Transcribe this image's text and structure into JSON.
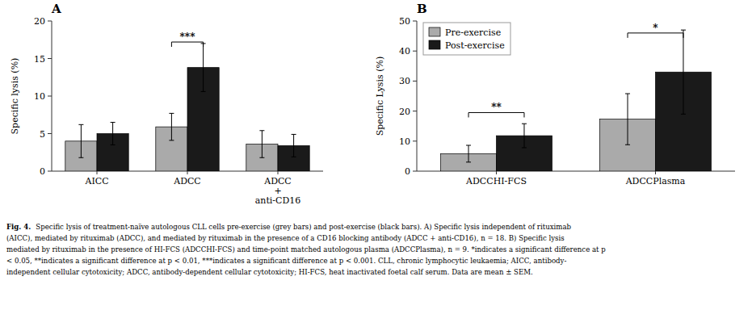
{
  "chart_data": [
    {
      "type": "bar",
      "title": "A",
      "ylabel": "Specific lysis (%)",
      "categories": [
        "AICC",
        "ADCC",
        "ADCC\n+\nanti-CD16"
      ],
      "series": [
        {
          "color": "#aaaaaa",
          "values": [
            4.0,
            5.9,
            3.6
          ],
          "errors": [
            2.2,
            1.8,
            1.8
          ]
        },
        {
          "color": "#1a1a1a",
          "values": [
            5.0,
            13.8,
            3.4
          ],
          "errors": [
            1.5,
            3.2,
            1.5
          ]
        }
      ],
      "ylim": [
        0,
        20
      ],
      "yticks": [
        0,
        5,
        10,
        15,
        20
      ],
      "grid": false,
      "annotations": [
        {
          "text": "***",
          "y": 17.2,
          "category": "ADCC"
        }
      ]
    },
    {
      "type": "bar",
      "title": "B",
      "ylabel": "Specific Lysis (%)",
      "categories": [
        "ADCCHI-FCS",
        "ADCCPlasma"
      ],
      "series": [
        {
          "name": "Pre-exercise",
          "color": "#aaaaaa",
          "values": [
            5.8,
            17.3
          ],
          "errors": [
            2.8,
            8.5
          ]
        },
        {
          "name": "Post-exercise",
          "color": "#1a1a1a",
          "values": [
            11.8,
            33.0
          ],
          "errors": [
            4.0,
            14.0
          ]
        }
      ],
      "ylim": [
        0,
        50
      ],
      "yticks": [
        0,
        10,
        20,
        30,
        40,
        50
      ],
      "grid": false,
      "legend": "upper left",
      "annotations": [
        {
          "text": "**",
          "y": 19.5,
          "category": "ADCCHI-FCS"
        },
        {
          "text": "*",
          "y": 46.0,
          "category": "ADCCPlasma"
        }
      ]
    }
  ],
  "caption_title": "Fig. 4.",
  "caption": [
    "Specific lysis of treatment-naïve autologous CLL cells pre-exercise (grey bars) and post-exercise (black bars). A) Specific lysis independent of rituximab",
    "(AICC), mediated by rituximab (ADCC), and mediated by rituximab in the presence of a CD16 blocking antibody (ADCC + anti-CD16), n = 18. B) Specific lysis",
    "mediated by rituximab in the presence of HI-FCS (ADCCHI-FCS) and time-point matched autologous plasma (ADCCPlasma), n = 9. *indicates a significant difference at p",
    "< 0.05, **indicates a significant difference at p < 0.01, ***indicates a significant difference at p < 0.001. CLL, chronic lymphocytic leukaemia; AICC, antibody-",
    "independent cellular cytotoxicity; ADCC, antibody-dependent cellular cytotoxicity; HI-FCS, heat inactivated foetal calf serum. Data are mean ± SEM."
  ]
}
